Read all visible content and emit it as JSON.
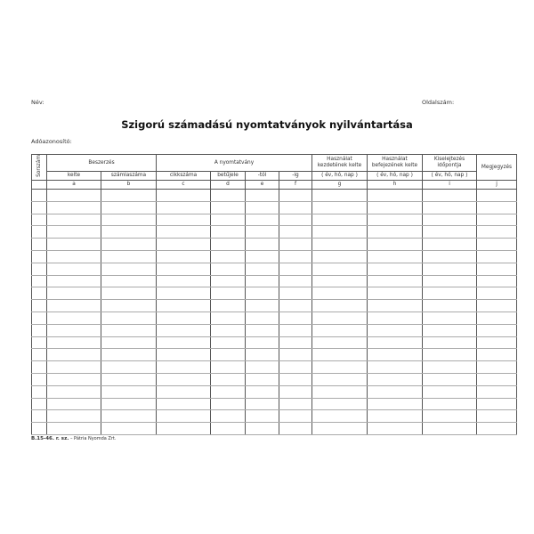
{
  "header": {
    "name_label": "Név:",
    "page_label": "Oldalszám:",
    "title": "Szigorú számadású nyomtatványok nyilvántartása",
    "tax_id_label": "Adóazonosító:"
  },
  "table": {
    "serial": "Sorszám",
    "purchase": "Beszerzés",
    "purchase_date": "kelte",
    "invoice_number": "számlaszáma",
    "form": "A nyomtatvány",
    "item_number": "cikkszáma",
    "letter": "betűjele",
    "from": "-tól",
    "to": "-ig",
    "use_start": "Használat kezdetének kelte",
    "use_end": "Használat befejezének kelte",
    "discard": "Kiselejtezés időpontja",
    "date_format": "( év, hó, nap )",
    "notes": "Megjegyzés",
    "letters": [
      "a",
      "b",
      "c",
      "d",
      "e",
      "f",
      "g",
      "h",
      "i",
      "j"
    ],
    "row_count": 20
  },
  "footer": {
    "code": "B.15-46. r. sz.",
    "printer": " – Pátria Nyomda Zrt."
  }
}
